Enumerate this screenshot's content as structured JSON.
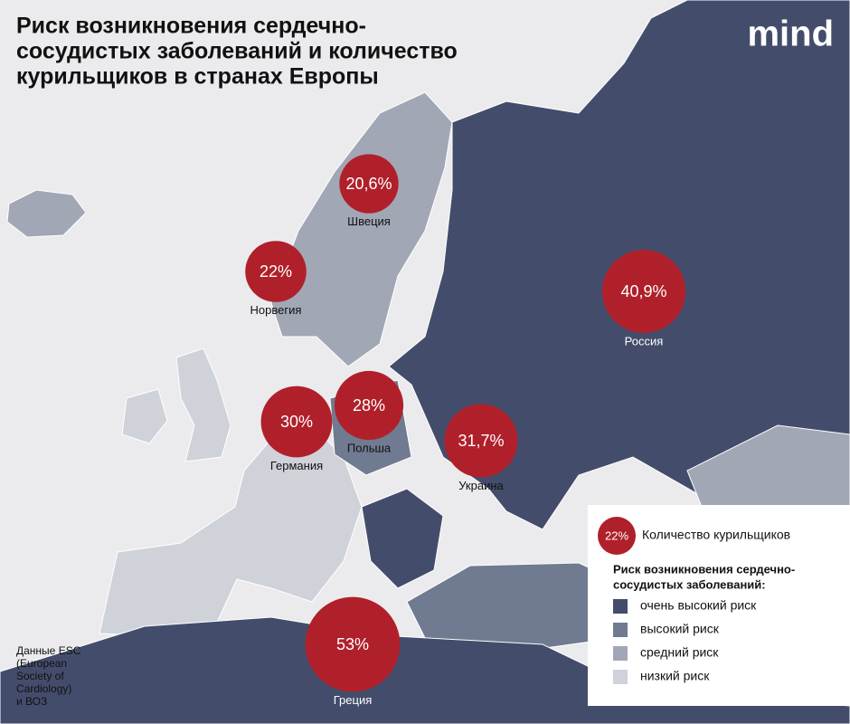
{
  "title": [
    "Риск возникновения сердечно-",
    "сосудистых заболеваний и количество",
    "курильщиков в странах Европы"
  ],
  "logo": "mind",
  "countries": [
    {
      "name": "Швеция",
      "value": 20.6,
      "value_label": "20,6%"
    },
    {
      "name": "Норвегия",
      "value": 22,
      "value_label": "22%"
    },
    {
      "name": "Россия",
      "value": 40.9,
      "value_label": "40,9%"
    },
    {
      "name": "Германия",
      "value": 30,
      "value_label": "30%"
    },
    {
      "name": "Польша",
      "value": 28,
      "value_label": "28%"
    },
    {
      "name": "Украина",
      "value": 31.7,
      "value_label": "31,7%"
    },
    {
      "name": "Греция",
      "value": 53,
      "value_label": "53%"
    }
  ],
  "legend": {
    "bubble_value": 22,
    "bubble_label": "22%",
    "bubble_text": "Количество курильщиков",
    "risk_title": [
      "Риск возникновения сердечно-",
      "сосудистых заболеваний:"
    ],
    "items": [
      {
        "label": "очень высокий риск",
        "color": "#434d6b"
      },
      {
        "label": "высокий риск",
        "color": "#707a90"
      },
      {
        "label": "средний риск",
        "color": "#a2a7b6"
      },
      {
        "label": "низкий риск",
        "color": "#d0d2da"
      }
    ]
  },
  "source": [
    "Данные ESC",
    "(European",
    "Society of",
    "Cardiology)",
    "и ВОЗ"
  ]
}
